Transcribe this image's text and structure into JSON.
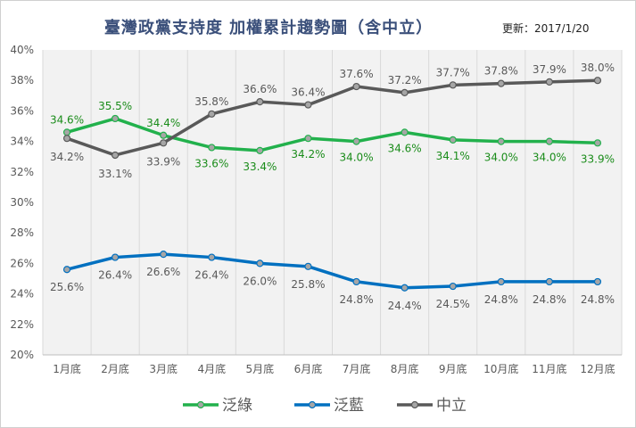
{
  "page": {
    "title": "臺灣政黨支持度 加權累計趨勢圖（含中立）",
    "updated": "更新：2017/1/20"
  },
  "chart_data": {
    "type": "line",
    "title": "臺灣政黨支持度 加權累計趨勢圖（含中立）",
    "categories": [
      "1月底",
      "2月底",
      "3月底",
      "4月底",
      "5月底",
      "6月底",
      "7月底",
      "8月底",
      "9月底",
      "10月底",
      "11月底",
      "12月底"
    ],
    "ylim": [
      20,
      40
    ],
    "yticks": [
      "20%",
      "22%",
      "24%",
      "26%",
      "28%",
      "30%",
      "32%",
      "34%",
      "36%",
      "38%",
      "40%"
    ],
    "grid": "vertical",
    "legend_position": "bottom",
    "series": [
      {
        "name": "泛綠",
        "color": "#22b14c",
        "label_color": "#1a8c1a",
        "label_side": "mixed",
        "values": [
          34.6,
          35.5,
          34.4,
          33.6,
          33.4,
          34.2,
          34.0,
          34.6,
          34.1,
          34.0,
          34.0,
          33.9
        ],
        "labels": [
          "34.6%",
          "35.5%",
          "34.4%",
          "33.6%",
          "33.4%",
          "34.2%",
          "34.0%",
          "34.6%",
          "34.1%",
          "34.0%",
          "34.0%",
          "33.9%"
        ]
      },
      {
        "name": "泛藍",
        "color": "#0070c0",
        "label_color": "#595959",
        "values": [
          25.6,
          26.4,
          26.6,
          26.4,
          26.0,
          25.8,
          24.8,
          24.4,
          24.5,
          24.8,
          24.8,
          24.8
        ],
        "labels": [
          "25.6%",
          "26.4%",
          "26.6%",
          "26.4%",
          "26.0%",
          "25.8%",
          "24.8%",
          "24.4%",
          "24.5%",
          "24.8%",
          "24.8%",
          "24.8%"
        ]
      },
      {
        "name": "中立",
        "color": "#595959",
        "label_color": "#595959",
        "values": [
          34.2,
          33.1,
          33.9,
          35.8,
          36.6,
          36.4,
          37.6,
          37.2,
          37.7,
          37.8,
          37.9,
          38.0
        ],
        "labels": [
          "34.2%",
          "33.1%",
          "33.9%",
          "35.8%",
          "36.6%",
          "36.4%",
          "37.6%",
          "37.2%",
          "37.7%",
          "37.8%",
          "37.9%",
          "38.0%"
        ]
      }
    ]
  }
}
